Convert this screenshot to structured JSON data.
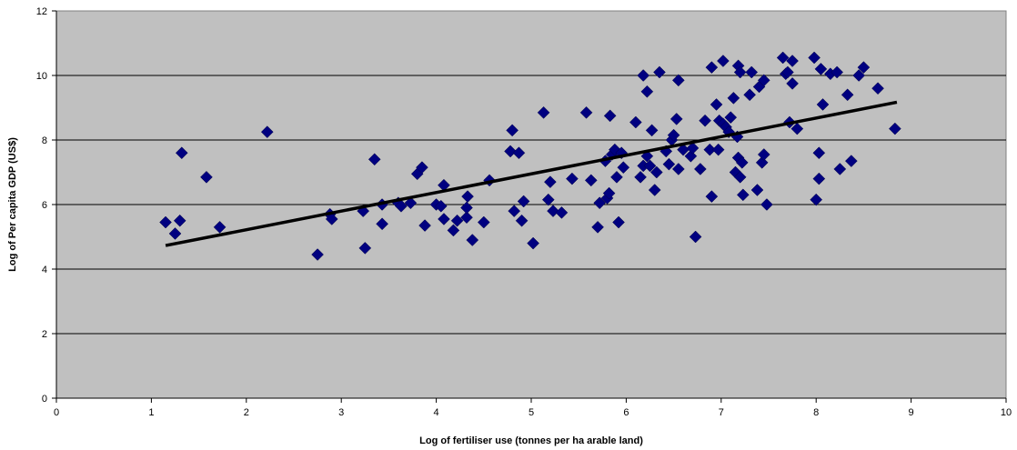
{
  "chart_data": {
    "type": "scatter",
    "title": "",
    "xlabel": "Log of fertiliser use (tonnes per ha arable land)",
    "ylabel": "Log of Per capita GDP (US$)",
    "xlim": [
      0,
      10
    ],
    "ylim": [
      0,
      12
    ],
    "x_ticks": [
      "0",
      "1",
      "2",
      "3",
      "4",
      "5",
      "6",
      "7",
      "8",
      "9",
      "10"
    ],
    "y_ticks": [
      "0",
      "2",
      "4",
      "6",
      "8",
      "10",
      "12"
    ],
    "grid": "horizontal",
    "legend": "none",
    "colors": {
      "plot_bg": "#c0c0c0",
      "marker": "#000080",
      "trendline": "#000000",
      "gridline": "#000000"
    },
    "series": [
      {
        "marker": "diamond",
        "points": [
          [
            1.15,
            5.45
          ],
          [
            1.25,
            5.1
          ],
          [
            1.3,
            5.5
          ],
          [
            1.32,
            7.6
          ],
          [
            1.58,
            6.85
          ],
          [
            1.72,
            5.3
          ],
          [
            2.22,
            8.25
          ],
          [
            2.75,
            4.45
          ],
          [
            2.88,
            5.7
          ],
          [
            2.9,
            5.55
          ],
          [
            3.23,
            5.8
          ],
          [
            3.25,
            4.65
          ],
          [
            3.35,
            7.4
          ],
          [
            3.43,
            6.0
          ],
          [
            3.43,
            5.4
          ],
          [
            3.6,
            6.05
          ],
          [
            3.63,
            5.95
          ],
          [
            3.73,
            6.05
          ],
          [
            3.8,
            6.95
          ],
          [
            3.85,
            7.15
          ],
          [
            3.88,
            5.35
          ],
          [
            4.0,
            6.0
          ],
          [
            4.05,
            5.95
          ],
          [
            4.08,
            6.6
          ],
          [
            4.08,
            5.55
          ],
          [
            4.18,
            5.2
          ],
          [
            4.22,
            5.5
          ],
          [
            4.32,
            5.6
          ],
          [
            4.33,
            6.25
          ],
          [
            4.32,
            5.9
          ],
          [
            4.38,
            4.9
          ],
          [
            4.5,
            5.45
          ],
          [
            4.56,
            6.75
          ],
          [
            4.78,
            7.65
          ],
          [
            4.8,
            8.3
          ],
          [
            4.82,
            5.8
          ],
          [
            4.87,
            7.6
          ],
          [
            4.9,
            5.5
          ],
          [
            4.92,
            6.1
          ],
          [
            5.02,
            4.8
          ],
          [
            5.13,
            8.85
          ],
          [
            5.18,
            6.15
          ],
          [
            5.2,
            6.7
          ],
          [
            5.23,
            5.8
          ],
          [
            5.32,
            5.75
          ],
          [
            5.43,
            6.8
          ],
          [
            5.58,
            8.85
          ],
          [
            5.63,
            6.75
          ],
          [
            5.7,
            5.3
          ],
          [
            5.72,
            6.05
          ],
          [
            5.78,
            7.35
          ],
          [
            5.8,
            6.2
          ],
          [
            5.82,
            6.35
          ],
          [
            5.83,
            8.75
          ],
          [
            5.85,
            7.55
          ],
          [
            5.88,
            7.7
          ],
          [
            5.9,
            6.85
          ],
          [
            5.92,
            5.45
          ],
          [
            5.95,
            7.6
          ],
          [
            5.97,
            7.15
          ],
          [
            6.1,
            8.55
          ],
          [
            6.15,
            6.85
          ],
          [
            6.18,
            10.0
          ],
          [
            6.18,
            7.2
          ],
          [
            6.22,
            7.5
          ],
          [
            6.22,
            9.5
          ],
          [
            6.25,
            7.2
          ],
          [
            6.27,
            8.3
          ],
          [
            6.3,
            6.45
          ],
          [
            6.32,
            7.0
          ],
          [
            6.35,
            10.1
          ],
          [
            6.42,
            7.65
          ],
          [
            6.45,
            7.25
          ],
          [
            6.48,
            8.0
          ],
          [
            6.5,
            8.15
          ],
          [
            6.53,
            8.65
          ],
          [
            6.55,
            7.1
          ],
          [
            6.55,
            9.85
          ],
          [
            6.6,
            7.7
          ],
          [
            6.68,
            7.5
          ],
          [
            6.7,
            7.75
          ],
          [
            6.73,
            5.0
          ],
          [
            6.78,
            7.1
          ],
          [
            6.83,
            8.6
          ],
          [
            6.88,
            7.7
          ],
          [
            6.9,
            10.25
          ],
          [
            6.9,
            6.25
          ],
          [
            6.95,
            9.1
          ],
          [
            6.97,
            7.7
          ],
          [
            6.98,
            8.6
          ],
          [
            7.02,
            10.45
          ],
          [
            7.02,
            8.5
          ],
          [
            7.05,
            8.4
          ],
          [
            7.08,
            8.25
          ],
          [
            7.1,
            8.7
          ],
          [
            7.13,
            9.3
          ],
          [
            7.15,
            7.0
          ],
          [
            7.17,
            8.1
          ],
          [
            7.18,
            10.3
          ],
          [
            7.18,
            7.45
          ],
          [
            7.2,
            10.1
          ],
          [
            7.2,
            6.85
          ],
          [
            7.22,
            7.3
          ],
          [
            7.23,
            6.3
          ],
          [
            7.3,
            9.4
          ],
          [
            7.32,
            10.1
          ],
          [
            7.38,
            6.45
          ],
          [
            7.4,
            9.65
          ],
          [
            7.43,
            7.3
          ],
          [
            7.45,
            7.55
          ],
          [
            7.45,
            9.85
          ],
          [
            7.48,
            6.0
          ],
          [
            7.65,
            10.55
          ],
          [
            7.68,
            10.05
          ],
          [
            7.7,
            10.1
          ],
          [
            7.72,
            8.55
          ],
          [
            7.75,
            10.45
          ],
          [
            7.75,
            9.75
          ],
          [
            7.8,
            8.35
          ],
          [
            7.98,
            10.55
          ],
          [
            8.0,
            6.15
          ],
          [
            8.03,
            6.8
          ],
          [
            8.03,
            7.6
          ],
          [
            8.05,
            10.2
          ],
          [
            8.07,
            9.1
          ],
          [
            8.15,
            10.05
          ],
          [
            8.22,
            10.1
          ],
          [
            8.25,
            7.1
          ],
          [
            8.33,
            9.4
          ],
          [
            8.37,
            7.35
          ],
          [
            8.45,
            10.0
          ],
          [
            8.5,
            10.25
          ],
          [
            8.65,
            9.6
          ],
          [
            8.83,
            8.35
          ]
        ]
      }
    ],
    "trendline": {
      "x": [
        1.15,
        8.85
      ],
      "y": [
        4.73,
        9.17
      ]
    }
  }
}
